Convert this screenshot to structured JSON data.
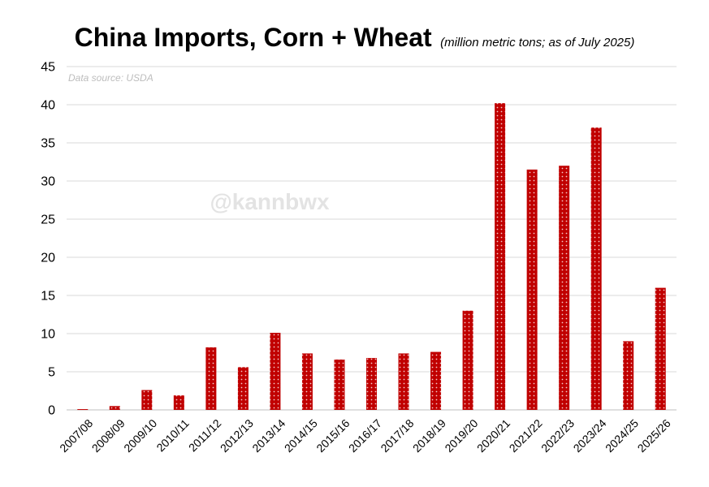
{
  "chart_data": {
    "type": "bar",
    "title": "China Imports, Corn + Wheat",
    "subtitle": "(million metric tons; as of July 2025)",
    "source_note": "Data source: USDA",
    "watermark": "@kannbwx",
    "xlabel": "",
    "ylabel": "",
    "ylim": [
      0,
      45
    ],
    "yticks": [
      0,
      5,
      10,
      15,
      20,
      25,
      30,
      35,
      40,
      45
    ],
    "grid": true,
    "bar_color": "#c00000",
    "categories": [
      "2007/08",
      "2008/09",
      "2009/10",
      "2010/11",
      "2011/12",
      "2012/13",
      "2013/14",
      "2014/15",
      "2015/16",
      "2016/17",
      "2017/18",
      "2018/19",
      "2019/20",
      "2020/21",
      "2021/22",
      "2022/23",
      "2023/24",
      "2024/25",
      "2025/26"
    ],
    "values": [
      0.1,
      0.5,
      2.6,
      1.9,
      8.2,
      5.6,
      10.1,
      7.4,
      6.6,
      6.8,
      7.4,
      7.6,
      13.0,
      40.2,
      31.5,
      32.0,
      37.0,
      9.0,
      16.0
    ]
  }
}
